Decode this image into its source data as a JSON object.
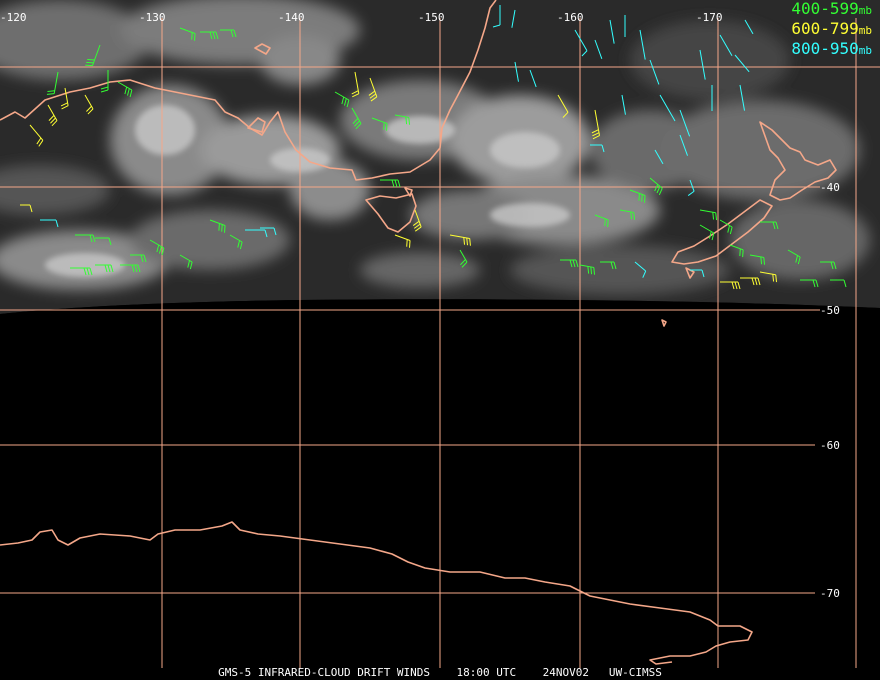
{
  "satellite": "GMS-5",
  "product": "INFRARED-CLOUD DRIFT WINDS",
  "time": "18:00 UTC",
  "date": "24NOV02",
  "credit": "UW-CIMSS",
  "colors": {
    "grid": "#f4a789",
    "coast": "#f4a789",
    "band_400_599": "#33ff33",
    "band_600_799": "#ffff33",
    "band_800_950": "#33ffff",
    "background": "#000000"
  },
  "longitude_labels": [
    "-120",
    "-130",
    "-140",
    "-150",
    "-160",
    "-170"
  ],
  "latitude_labels": [
    "-40",
    "-50",
    "-60",
    "-70"
  ],
  "legend": [
    {
      "label": "400-599",
      "unit": "mb",
      "color_key": "band_400_599"
    },
    {
      "label": "600-799",
      "unit": "mb",
      "color_key": "band_600_799"
    },
    {
      "label": "800-950",
      "unit": "mb",
      "color_key": "band_800_950"
    }
  ]
}
